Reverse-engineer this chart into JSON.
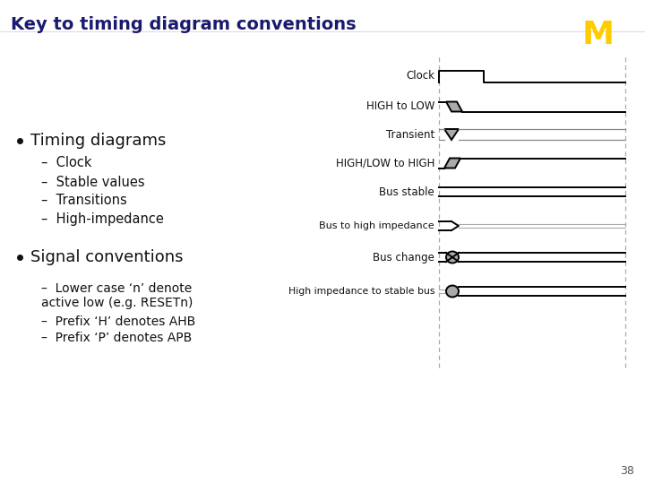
{
  "title": "Key to timing diagram conventions",
  "title_color": "#1a1a6e",
  "title_fontsize": 14,
  "bg_color": "#ffffff",
  "slide_number": "38",
  "bullet1_header": "Timing diagrams",
  "bullet1_items": [
    "Clock",
    "Stable values",
    "Transitions",
    "High-impedance"
  ],
  "bullet2_header": "Signal conventions",
  "bullet2_items": [
    "Lower case ‘n’ denote\nactive low (e.g. RESETn)",
    "Prefix ‘H’ denotes AHB",
    "Prefix ‘P’ denotes APB"
  ],
  "diagram_labels": [
    "Clock",
    "HIGH to LOW",
    "Transient",
    "HIGH/LOW to HIGH",
    "Bus stable",
    "Bus to high impedance",
    "Bus change",
    "High impedance to stable bus"
  ],
  "gray_fill": "#aaaaaa",
  "text_color": "#111111",
  "diagram_line_color": "#000000",
  "dotted_line_color": "#aaaaaa",
  "logo_gold": "#FFCC00",
  "logo_blue": "#00274C"
}
